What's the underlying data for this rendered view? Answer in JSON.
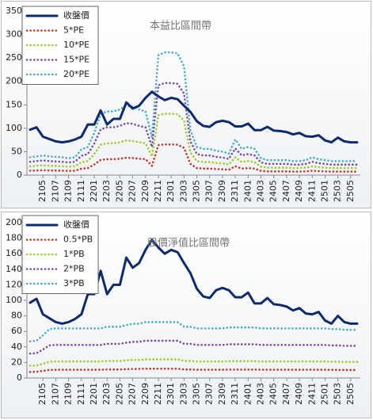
{
  "chart_data": [
    {
      "type": "line",
      "title": "本益比區間帶",
      "categories": [
        null,
        null,
        "2105",
        null,
        "2107",
        null,
        "2109",
        null,
        "2111",
        null,
        "2201",
        null,
        "2203",
        null,
        "2205",
        null,
        "2207",
        null,
        "2209",
        null,
        "2211",
        null,
        "2301",
        null,
        "2303",
        null,
        "2305",
        null,
        "2307",
        null,
        "2309",
        null,
        "2311",
        null,
        "2401",
        null,
        "2403",
        null,
        "2405",
        null,
        "2407",
        null,
        "2409",
        null,
        "2411",
        null,
        "2501",
        null,
        "2503",
        null,
        "2505",
        null
      ],
      "ylim": [
        0,
        350
      ],
      "yticks": [
        0,
        50,
        100,
        150,
        200,
        250,
        300,
        350
      ],
      "legend": "upper left",
      "series": [
        {
          "name": "收盤價",
          "color": "#0d2a6e",
          "line_style": "solid",
          "values": [
            97,
            102,
            82,
            77,
            72,
            70,
            72,
            76,
            82,
            108,
            108,
            138,
            108,
            120,
            120,
            155,
            142,
            148,
            165,
            178,
            168,
            160,
            165,
            162,
            148,
            135,
            115,
            105,
            103,
            113,
            116,
            113,
            104,
            104,
            110,
            96,
            96,
            103,
            95,
            94,
            92,
            87,
            90,
            83,
            82,
            85,
            74,
            70,
            80,
            72,
            70,
            70
          ]
        },
        {
          "name": "5*PE",
          "color": "#c0392b",
          "line_style": "dotted",
          "values": [
            9.5,
            10,
            10.5,
            10,
            9.75,
            9.5,
            9,
            9.5,
            13.75,
            15,
            22.5,
            32.5,
            34,
            34,
            35,
            37,
            36.5,
            35,
            34,
            20,
            64,
            65.5,
            65.5,
            65,
            58,
            24,
            15,
            14,
            14,
            13,
            12.5,
            11.5,
            19,
            14,
            15,
            14,
            9,
            8,
            8,
            8,
            8,
            7.5,
            7.5,
            8,
            9.5,
            8.5,
            8,
            7.5,
            7.5,
            7.5,
            7.5,
            7.5
          ]
        },
        {
          "name": "10*PE",
          "color": "#9acd32",
          "line_style": "dotted",
          "values": [
            19,
            20,
            21,
            20,
            19.5,
            19,
            18,
            19,
            27.5,
            30,
            45,
            65,
            68,
            68,
            70,
            74,
            73,
            70,
            68,
            40,
            128,
            131,
            131,
            130,
            116,
            48,
            30,
            28,
            28,
            26,
            25,
            23,
            38,
            28,
            30,
            28,
            18,
            16,
            16,
            16,
            16,
            15,
            15,
            16,
            19,
            17,
            16,
            15,
            15,
            15,
            15,
            15
          ]
        },
        {
          "name": "15*PE",
          "color": "#7a4ea8",
          "line_style": "dotted",
          "values": [
            28.5,
            30,
            31.5,
            30,
            29.25,
            28.5,
            27,
            28.5,
            41.25,
            45,
            67.5,
            97.5,
            102,
            102,
            105,
            111,
            109.5,
            105,
            102,
            60,
            192,
            196.5,
            196.5,
            195,
            174,
            72,
            45,
            42,
            42,
            39,
            37.5,
            34.5,
            57,
            42,
            45,
            42,
            27,
            24,
            24,
            24,
            24,
            22.5,
            22.5,
            24,
            28.5,
            25.5,
            24,
            22.5,
            22.5,
            22.5,
            22.5,
            22.5
          ]
        },
        {
          "name": "20*PE",
          "color": "#4bacc6",
          "line_style": "dotted",
          "values": [
            38,
            40,
            42,
            40,
            39,
            38,
            36,
            38,
            55,
            60,
            90,
            130,
            136,
            136,
            140,
            148,
            146,
            140,
            136,
            80,
            256,
            262,
            262,
            260,
            232,
            96,
            60,
            56,
            56,
            52,
            50,
            46,
            76,
            56,
            60,
            56,
            36,
            32,
            32,
            32,
            32,
            30,
            30,
            32,
            38,
            34,
            32,
            30,
            30,
            30,
            30,
            30
          ]
        }
      ]
    },
    {
      "type": "line",
      "title": "股價淨值比區間帶",
      "categories": [
        null,
        null,
        "2105",
        null,
        "2107",
        null,
        "2109",
        null,
        "2111",
        null,
        "2201",
        null,
        "2203",
        null,
        "2205",
        null,
        "2207",
        null,
        "2209",
        null,
        "2211",
        null,
        "2301",
        null,
        "2303",
        null,
        "2305",
        null,
        "2307",
        null,
        "2309",
        null,
        "2311",
        null,
        "2401",
        null,
        "2403",
        null,
        "2405",
        null,
        "2407",
        null,
        "2409",
        null,
        "2411",
        null,
        "2501",
        null,
        "2503",
        null,
        "2505",
        null
      ],
      "ylim": [
        0,
        200
      ],
      "yticks": [
        0,
        20,
        40,
        60,
        80,
        100,
        120,
        140,
        160,
        180,
        200
      ],
      "legend": "upper left",
      "series": [
        {
          "name": "收盤價",
          "color": "#0d2a6e",
          "line_style": "solid",
          "values": [
            97,
            102,
            82,
            77,
            72,
            70,
            72,
            76,
            82,
            108,
            108,
            138,
            108,
            120,
            120,
            155,
            142,
            148,
            165,
            178,
            168,
            160,
            165,
            162,
            148,
            135,
            115,
            105,
            103,
            113,
            116,
            113,
            104,
            104,
            110,
            96,
            96,
            103,
            95,
            94,
            92,
            87,
            90,
            83,
            82,
            85,
            74,
            70,
            80,
            72,
            70,
            70
          ]
        },
        {
          "name": "0.5*PB",
          "color": "#c0392b",
          "line_style": "dotted",
          "values": [
            7.85,
            8,
            9.15,
            10.5,
            10.65,
            10.65,
            10.65,
            10.65,
            10.65,
            10.65,
            10.65,
            10.65,
            11,
            11,
            11,
            11.35,
            11.65,
            11.65,
            12,
            12,
            12,
            12,
            12,
            12,
            11,
            11,
            10.65,
            10.65,
            10.65,
            10.65,
            10.65,
            10.85,
            10.85,
            10.85,
            10.85,
            10.85,
            10.65,
            10.65,
            10.65,
            10.65,
            10.65,
            10.65,
            10.65,
            10.65,
            10.65,
            10.65,
            10.65,
            10.5,
            10.5,
            10.35,
            10.35,
            10.35
          ]
        },
        {
          "name": "1*PB",
          "color": "#9acd32",
          "line_style": "dotted",
          "values": [
            15.7,
            16,
            18.3,
            21,
            21.3,
            21.3,
            21.3,
            21.3,
            21.3,
            21.3,
            21.3,
            21.3,
            22,
            22,
            22,
            22.7,
            23.3,
            23.3,
            24,
            24,
            24,
            24,
            24,
            24,
            22,
            22,
            21.3,
            21.3,
            21.3,
            21.3,
            21.3,
            21.7,
            21.7,
            21.7,
            21.7,
            21.7,
            21.3,
            21.3,
            21.3,
            21.3,
            21.3,
            21.3,
            21.3,
            21.3,
            21.3,
            21.3,
            21.3,
            21,
            21,
            20.7,
            20.7,
            20.7
          ]
        },
        {
          "name": "2*PB",
          "color": "#7a4ea8",
          "line_style": "dotted",
          "values": [
            31.4,
            32,
            36.6,
            42,
            42.6,
            42.6,
            42.6,
            42.6,
            42.6,
            42.6,
            42.6,
            42.6,
            44,
            44,
            44,
            45.4,
            46.6,
            46.6,
            48,
            48,
            48,
            48,
            48,
            48,
            44,
            44,
            42.6,
            42.6,
            42.6,
            42.6,
            42.6,
            43.4,
            43.4,
            43.4,
            43.4,
            43.4,
            42.6,
            42.6,
            42.6,
            42.6,
            42.6,
            42.6,
            42.6,
            42.6,
            42.6,
            42.6,
            42.6,
            42,
            42,
            41.4,
            41.4,
            41.4
          ]
        },
        {
          "name": "3*PB",
          "color": "#4bacc6",
          "line_style": "dotted",
          "values": [
            47.1,
            48,
            54.9,
            63,
            63.9,
            63.9,
            63.9,
            63.9,
            63.9,
            63.9,
            63.9,
            63.9,
            66,
            66,
            66,
            68.1,
            69.9,
            69.9,
            72,
            72,
            72,
            72,
            72,
            72,
            66,
            66,
            63.9,
            63.9,
            63.9,
            63.9,
            63.9,
            65.1,
            65.1,
            65.1,
            65.1,
            65.1,
            63.9,
            63.9,
            63.9,
            63.9,
            63.9,
            63.9,
            63.9,
            63.9,
            63.9,
            63.9,
            63.9,
            63,
            63,
            62.1,
            62.1,
            62.1
          ]
        }
      ]
    }
  ]
}
